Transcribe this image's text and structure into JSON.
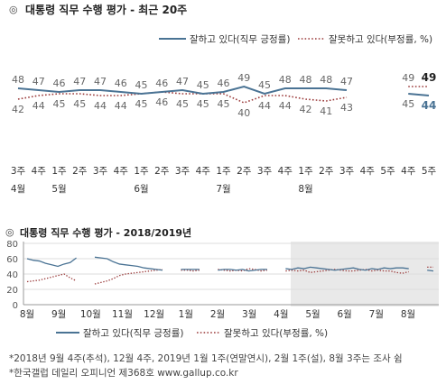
{
  "header": {
    "mark": "◎",
    "title": "대통령 직무 수행 평가 - 최근 20주"
  },
  "colors": {
    "approve": "#4a7394",
    "disapprove": "#9b3b3b",
    "grid": "#dddddd",
    "shade": "#e9e9e9",
    "axis": "#999999"
  },
  "legend": [
    {
      "style": "solid",
      "label": "잘하고 있다(직무 긍정률)"
    },
    {
      "style": "dotted",
      "label": "잘못하고 있다(부정률, %)"
    }
  ],
  "chart_data": [
    {
      "type": "line",
      "title": "대통령 직무 수행 평가 - 최근 20주",
      "x_week": [
        "3주",
        "4주",
        "1주",
        "2주",
        "3주",
        "4주",
        "1주",
        "2주",
        "3주",
        "4주",
        "1주",
        "2주",
        "3주",
        "4주",
        "1주",
        "2주",
        "3주",
        "4주",
        "5주",
        "4주",
        "5주"
      ],
      "x_month": [
        "4월",
        "",
        "5월",
        "",
        "",
        "",
        "6월",
        "",
        "",
        "",
        "7월",
        "",
        "",
        "",
        "8월",
        "",
        "",
        "",
        "",
        "",
        ""
      ],
      "series": [
        {
          "name": "잘하고 있다(직무 긍정률)",
          "values": [
            48,
            47,
            46,
            47,
            47,
            46,
            45,
            46,
            47,
            45,
            46,
            49,
            45,
            48,
            48,
            48,
            47,
            null,
            null,
            45,
            44
          ]
        },
        {
          "name": "잘못하고 있다(부정률, %)",
          "values": [
            42,
            44,
            45,
            45,
            44,
            44,
            45,
            46,
            45,
            45,
            45,
            40,
            44,
            44,
            42,
            41,
            43,
            null,
            null,
            49,
            49
          ]
        }
      ],
      "value_labels_visible": [
        [
          48,
          47,
          46,
          47,
          47,
          46,
          45,
          46,
          47,
          45,
          46,
          49,
          45,
          48,
          48,
          48,
          47,
          45,
          44
        ],
        [
          42,
          44,
          45,
          45,
          44,
          44,
          45,
          46,
          45,
          45,
          45,
          40,
          44,
          44,
          42,
          41,
          43,
          49,
          49
        ]
      ],
      "ylim": [
        30,
        60
      ],
      "grid": false,
      "legend_position": "top-right"
    },
    {
      "type": "line",
      "title": "대통령 직무 수행 평가 - 2018/2019년",
      "y_ticks": [
        80,
        60,
        40,
        20,
        0
      ],
      "ylim": [
        0,
        80
      ],
      "x_ticks": [
        "8월",
        "9월",
        "10월",
        "11월",
        "12월",
        "1월",
        "2월",
        "3월",
        "4월",
        "5월",
        "6월",
        "7월",
        "8월"
      ],
      "grid": true,
      "highlight_region": "recent 20 weeks",
      "series": [
        {
          "name": "잘하고 있다(직무 긍정률)",
          "values": [
            60,
            58,
            57,
            54,
            52,
            50,
            53,
            55,
            61,
            null,
            null,
            62,
            61,
            60,
            56,
            53,
            52,
            51,
            50,
            48,
            47,
            46,
            45,
            null,
            null,
            46,
            46,
            46,
            46,
            null,
            null,
            45,
            46,
            46,
            45,
            46,
            44,
            45,
            46,
            46,
            null,
            null,
            47,
            46,
            48,
            47,
            49,
            48,
            47,
            46,
            45,
            46,
            47,
            48,
            46,
            45,
            47,
            46,
            48,
            47,
            48,
            48,
            47,
            null,
            null,
            45,
            44
          ]
        },
        {
          "name": "잘못하고 있다(부정률, %)",
          "values": [
            30,
            31,
            32,
            34,
            36,
            38,
            40,
            35,
            31,
            null,
            null,
            27,
            29,
            31,
            34,
            38,
            40,
            41,
            42,
            43,
            44,
            45,
            46,
            null,
            null,
            45,
            45,
            44,
            45,
            null,
            null,
            46,
            45,
            44,
            45,
            44,
            47,
            46,
            44,
            45,
            null,
            null,
            44,
            45,
            44,
            45,
            42,
            43,
            44,
            45,
            46,
            45,
            44,
            44,
            45,
            46,
            44,
            45,
            44,
            44,
            42,
            41,
            43,
            null,
            null,
            49,
            49
          ]
        }
      ]
    }
  ],
  "footnotes": [
    "*2018년 9월 4주(추석), 12월 4주, 2019년 1월 1주(연말연시), 2월 1주(설), 8월 3주는 조사 쉼",
    "*한국갤럽 데일리 오피니언 제368호 www.gallup.co.kr"
  ]
}
